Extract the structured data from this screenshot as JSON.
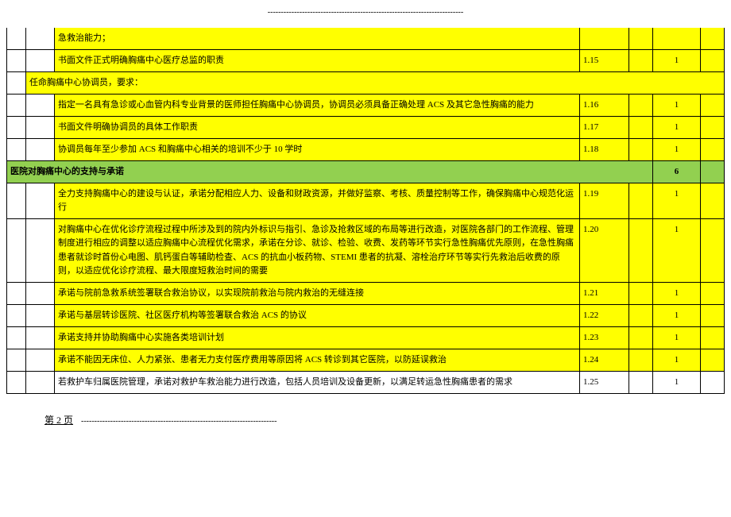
{
  "top_dashes": "--------------------------------------------------------------------------",
  "rows": [
    {
      "style": "yellow",
      "span": "text",
      "indent": 2,
      "text": "急救治能力；",
      "num": "",
      "pts": "",
      "topOpen": true
    },
    {
      "style": "yellow",
      "span": "text",
      "indent": 2,
      "text": "书面文件正式明确胸痛中心医疗总监的职责",
      "num": "1.15",
      "pts": "1"
    },
    {
      "style": "yellow",
      "span": "header",
      "indent": 1,
      "text": "任命胸痛中心协调员，要求：",
      "num": "",
      "pts": ""
    },
    {
      "style": "yellow",
      "span": "text",
      "indent": 2,
      "text": "指定一名具有急诊或心血管内科专业背景的医师担任胸痛中心协调员，协调员必须具备正确处理 ACS 及其它急性胸痛的能力",
      "num": "1.16",
      "pts": "1"
    },
    {
      "style": "yellow",
      "span": "text",
      "indent": 2,
      "text": "书面文件明确协调员的具体工作职责",
      "num": "1.17",
      "pts": "1"
    },
    {
      "style": "yellow",
      "span": "text",
      "indent": 2,
      "text": "协调员每年至少参加 ACS 和胸痛中心相关的培训不少于 10 学时",
      "num": "1.18",
      "pts": "1"
    },
    {
      "style": "green",
      "span": "section",
      "indent": 0,
      "text": "医院对胸痛中心的支持与承诺",
      "num": "",
      "pts": "6",
      "bold": true
    },
    {
      "style": "yellow",
      "span": "text",
      "indent": 2,
      "text": "全力支持胸痛中心的建设与认证，承诺分配相应人力、设备和财政资源，并做好监察、考核、质量控制等工作，确保胸痛中心规范化运行",
      "num": "1.19",
      "pts": "1"
    },
    {
      "style": "yellow",
      "span": "text",
      "indent": 2,
      "text": "对胸痛中心在优化诊疗流程过程中所涉及到的院内外标识与指引、急诊及抢救区域的布局等进行改造，对医院各部门的工作流程、管理制度进行相应的调整以适应胸痛中心流程优化需求，承诺在分诊、就诊、检验、收费、发药等环节实行急性胸痛优先原则，在急性胸痛患者就诊时首份心电图、肌钙蛋白等辅助检查、ACS 的抗血小板药物、STEMI 患者的抗凝、溶栓治疗环节等实行先救治后收费的原则，以适应优化诊疗流程、最大限度短救治时间的需要",
      "num": "1.20",
      "pts": "1"
    },
    {
      "style": "yellow",
      "span": "text",
      "indent": 2,
      "text": "承诺与院前急救系统签署联合救治协议，以实现院前救治与院内救治的无缝连接",
      "num": "1.21",
      "pts": "1"
    },
    {
      "style": "yellow",
      "span": "text",
      "indent": 2,
      "text": "承诺与基层转诊医院、社区医疗机构等签署联合救治 ACS 的协议",
      "num": "1.22",
      "pts": "1"
    },
    {
      "style": "yellow",
      "span": "text",
      "indent": 2,
      "text": "承诺支持并协助胸痛中心实施各类培训计划",
      "num": "1.23",
      "pts": "1"
    },
    {
      "style": "yellow",
      "span": "text",
      "indent": 2,
      "text": "承诺不能因无床位、人力紧张、患者无力支付医疗费用等原因将 ACS 转诊到其它医院，以防延误救治",
      "num": "1.24",
      "pts": "1"
    },
    {
      "style": "white",
      "span": "text",
      "indent": 2,
      "text": "若救护车归属医院管理，承诺对救护车救治能力进行改造，包括人员培训及设备更新，以满足转运急性胸痛患者的需求",
      "num": "1.25",
      "pts": "1"
    }
  ],
  "footer": {
    "page_label": "第 2 页",
    "dashes": "--------------------------------------------------------------------------"
  },
  "colors": {
    "yellow": "#ffff00",
    "green": "#92d050",
    "white": "#ffffff",
    "border": "#000000"
  }
}
